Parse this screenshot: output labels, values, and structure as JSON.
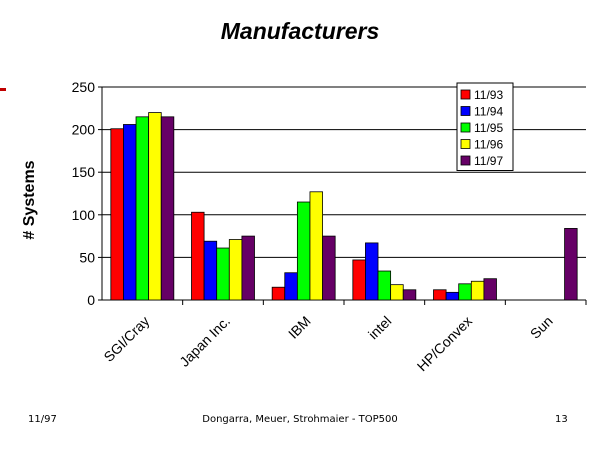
{
  "slide": {
    "footer_left": "11/97",
    "footer_center": "Dongarra, Meuer, Strohmaier - TOP500",
    "footer_right": "13"
  },
  "chart_data": {
    "type": "bar",
    "title": "Manufacturers",
    "xlabel": "",
    "ylabel": "# Systems",
    "ylim": [
      0,
      250
    ],
    "yticks": [
      0,
      50,
      100,
      150,
      200,
      250
    ],
    "grid": true,
    "legend_position": "top-right",
    "categories": [
      "SGI/Cray",
      "Japan Inc.",
      "IBM",
      "intel",
      "HP/Convex",
      "Sun"
    ],
    "series": [
      {
        "name": "11/93",
        "color": "#ff0000",
        "values": [
          201,
          103,
          15,
          47,
          12,
          0
        ]
      },
      {
        "name": "11/94",
        "color": "#0000ff",
        "values": [
          206,
          69,
          32,
          67,
          9,
          0
        ]
      },
      {
        "name": "11/95",
        "color": "#00ff00",
        "values": [
          215,
          61,
          115,
          34,
          19,
          0
        ]
      },
      {
        "name": "11/96",
        "color": "#ffff00",
        "values": [
          220,
          71,
          127,
          18,
          22,
          0
        ]
      },
      {
        "name": "11/97",
        "color": "#660066",
        "values": [
          215,
          75,
          75,
          12,
          25,
          84
        ]
      }
    ]
  }
}
